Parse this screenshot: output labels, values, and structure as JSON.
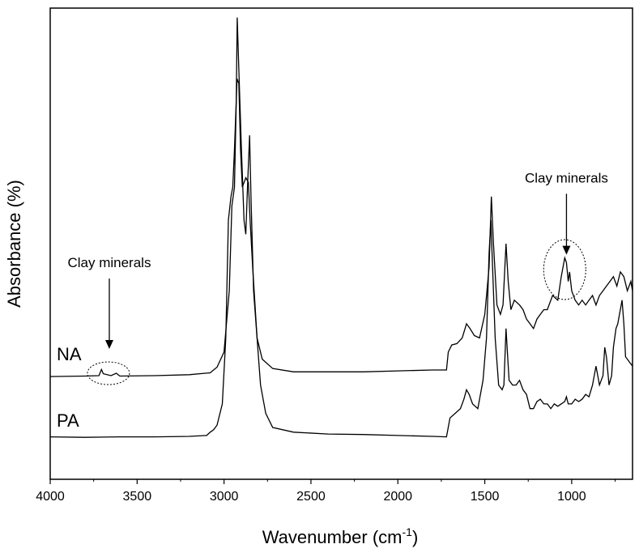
{
  "chart_data": {
    "type": "line",
    "title": "",
    "xlabel": "Wavenumber (cm",
    "xlabel_sup": "-1",
    "xlabel_tail": ")",
    "ylabel": "Absorbance (%)",
    "x_reversed": true,
    "xlim": [
      4000,
      650
    ],
    "ylim": [
      0,
      1
    ],
    "y_ticks_shown": false,
    "x_ticks": [
      4000,
      3500,
      3000,
      2500,
      2000,
      1500,
      1000
    ],
    "grid": false,
    "legend": "none",
    "series": [
      {
        "name": "NA",
        "points": [
          [
            4000,
            0.218
          ],
          [
            3800,
            0.219
          ],
          [
            3720,
            0.22
          ],
          [
            3705,
            0.233
          ],
          [
            3695,
            0.224
          ],
          [
            3650,
            0.22
          ],
          [
            3620,
            0.225
          ],
          [
            3600,
            0.219
          ],
          [
            3400,
            0.22
          ],
          [
            3200,
            0.222
          ],
          [
            3080,
            0.226
          ],
          [
            3040,
            0.238
          ],
          [
            3000,
            0.27
          ],
          [
            2970,
            0.4
          ],
          [
            2955,
            0.58
          ],
          [
            2940,
            0.62
          ],
          [
            2930,
            0.8
          ],
          [
            2924,
            0.98
          ],
          [
            2915,
            0.87
          ],
          [
            2900,
            0.7
          ],
          [
            2885,
            0.55
          ],
          [
            2875,
            0.52
          ],
          [
            2865,
            0.62
          ],
          [
            2853,
            0.73
          ],
          [
            2845,
            0.6
          ],
          [
            2830,
            0.4
          ],
          [
            2810,
            0.3
          ],
          [
            2780,
            0.255
          ],
          [
            2720,
            0.235
          ],
          [
            2600,
            0.228
          ],
          [
            2400,
            0.228
          ],
          [
            2200,
            0.228
          ],
          [
            2000,
            0.23
          ],
          [
            1800,
            0.232
          ],
          [
            1720,
            0.232
          ],
          [
            1710,
            0.27
          ],
          [
            1690,
            0.285
          ],
          [
            1660,
            0.288
          ],
          [
            1630,
            0.3
          ],
          [
            1605,
            0.33
          ],
          [
            1585,
            0.32
          ],
          [
            1560,
            0.305
          ],
          [
            1530,
            0.3
          ],
          [
            1500,
            0.35
          ],
          [
            1475,
            0.45
          ],
          [
            1462,
            0.6
          ],
          [
            1450,
            0.5
          ],
          [
            1430,
            0.37
          ],
          [
            1410,
            0.35
          ],
          [
            1395,
            0.37
          ],
          [
            1378,
            0.5
          ],
          [
            1365,
            0.42
          ],
          [
            1350,
            0.36
          ],
          [
            1330,
            0.38
          ],
          [
            1300,
            0.37
          ],
          [
            1280,
            0.36
          ],
          [
            1260,
            0.34
          ],
          [
            1240,
            0.33
          ],
          [
            1220,
            0.32
          ],
          [
            1200,
            0.34
          ],
          [
            1180,
            0.35
          ],
          [
            1160,
            0.36
          ],
          [
            1140,
            0.36
          ],
          [
            1110,
            0.39
          ],
          [
            1080,
            0.38
          ],
          [
            1060,
            0.43
          ],
          [
            1040,
            0.47
          ],
          [
            1030,
            0.46
          ],
          [
            1020,
            0.42
          ],
          [
            1012,
            0.44
          ],
          [
            1000,
            0.4
          ],
          [
            980,
            0.38
          ],
          [
            960,
            0.37
          ],
          [
            940,
            0.38
          ],
          [
            920,
            0.37
          ],
          [
            900,
            0.38
          ],
          [
            880,
            0.39
          ],
          [
            860,
            0.37
          ],
          [
            840,
            0.39
          ],
          [
            820,
            0.4
          ],
          [
            800,
            0.41
          ],
          [
            780,
            0.42
          ],
          [
            760,
            0.43
          ],
          [
            740,
            0.41
          ],
          [
            720,
            0.44
          ],
          [
            700,
            0.43
          ],
          [
            680,
            0.4
          ],
          [
            660,
            0.42
          ],
          [
            650,
            0.4
          ]
        ]
      },
      {
        "name": "PA",
        "points": [
          [
            4000,
            0.09
          ],
          [
            3800,
            0.089
          ],
          [
            3600,
            0.09
          ],
          [
            3400,
            0.09
          ],
          [
            3200,
            0.091
          ],
          [
            3100,
            0.093
          ],
          [
            3080,
            0.1
          ],
          [
            3060,
            0.105
          ],
          [
            3040,
            0.115
          ],
          [
            3010,
            0.16
          ],
          [
            2990,
            0.3
          ],
          [
            2975,
            0.55
          ],
          [
            2960,
            0.6
          ],
          [
            2950,
            0.62
          ],
          [
            2940,
            0.7
          ],
          [
            2925,
            0.85
          ],
          [
            2915,
            0.84
          ],
          [
            2905,
            0.7
          ],
          [
            2895,
            0.62
          ],
          [
            2875,
            0.64
          ],
          [
            2860,
            0.63
          ],
          [
            2850,
            0.55
          ],
          [
            2835,
            0.45
          ],
          [
            2810,
            0.3
          ],
          [
            2790,
            0.2
          ],
          [
            2760,
            0.14
          ],
          [
            2720,
            0.11
          ],
          [
            2600,
            0.1
          ],
          [
            2400,
            0.096
          ],
          [
            2200,
            0.095
          ],
          [
            2000,
            0.093
          ],
          [
            1800,
            0.091
          ],
          [
            1720,
            0.09
          ],
          [
            1700,
            0.13
          ],
          [
            1670,
            0.14
          ],
          [
            1640,
            0.15
          ],
          [
            1620,
            0.17
          ],
          [
            1605,
            0.19
          ],
          [
            1590,
            0.18
          ],
          [
            1570,
            0.16
          ],
          [
            1540,
            0.15
          ],
          [
            1510,
            0.21
          ],
          [
            1490,
            0.3
          ],
          [
            1475,
            0.48
          ],
          [
            1465,
            0.55
          ],
          [
            1455,
            0.45
          ],
          [
            1440,
            0.3
          ],
          [
            1420,
            0.2
          ],
          [
            1400,
            0.19
          ],
          [
            1390,
            0.2
          ],
          [
            1378,
            0.32
          ],
          [
            1370,
            0.27
          ],
          [
            1360,
            0.21
          ],
          [
            1340,
            0.2
          ],
          [
            1320,
            0.2
          ],
          [
            1300,
            0.21
          ],
          [
            1280,
            0.19
          ],
          [
            1260,
            0.18
          ],
          [
            1240,
            0.15
          ],
          [
            1220,
            0.15
          ],
          [
            1200,
            0.165
          ],
          [
            1180,
            0.17
          ],
          [
            1160,
            0.16
          ],
          [
            1140,
            0.16
          ],
          [
            1120,
            0.15
          ],
          [
            1100,
            0.16
          ],
          [
            1080,
            0.155
          ],
          [
            1060,
            0.16
          ],
          [
            1040,
            0.165
          ],
          [
            1030,
            0.175
          ],
          [
            1020,
            0.16
          ],
          [
            1000,
            0.16
          ],
          [
            980,
            0.17
          ],
          [
            960,
            0.165
          ],
          [
            940,
            0.17
          ],
          [
            920,
            0.18
          ],
          [
            900,
            0.175
          ],
          [
            880,
            0.2
          ],
          [
            860,
            0.24
          ],
          [
            840,
            0.2
          ],
          [
            820,
            0.22
          ],
          [
            810,
            0.28
          ],
          [
            800,
            0.26
          ],
          [
            785,
            0.2
          ],
          [
            770,
            0.22
          ],
          [
            760,
            0.28
          ],
          [
            745,
            0.32
          ],
          [
            735,
            0.33
          ],
          [
            725,
            0.35
          ],
          [
            710,
            0.38
          ],
          [
            700,
            0.33
          ],
          [
            690,
            0.26
          ],
          [
            670,
            0.25
          ],
          [
            650,
            0.24
          ]
        ]
      }
    ],
    "annotations": [
      {
        "text": "Clay minerals",
        "x": 3660,
        "y": 0.45,
        "arrow_to": [
          3660,
          0.28
        ],
        "ellipse_center": [
          3665,
          0.225
        ]
      },
      {
        "text": "Clay minerals",
        "x": 1030,
        "y": 0.63,
        "arrow_to": [
          1030,
          0.48
        ],
        "ellipse_center": [
          1040,
          0.445
        ]
      }
    ]
  }
}
